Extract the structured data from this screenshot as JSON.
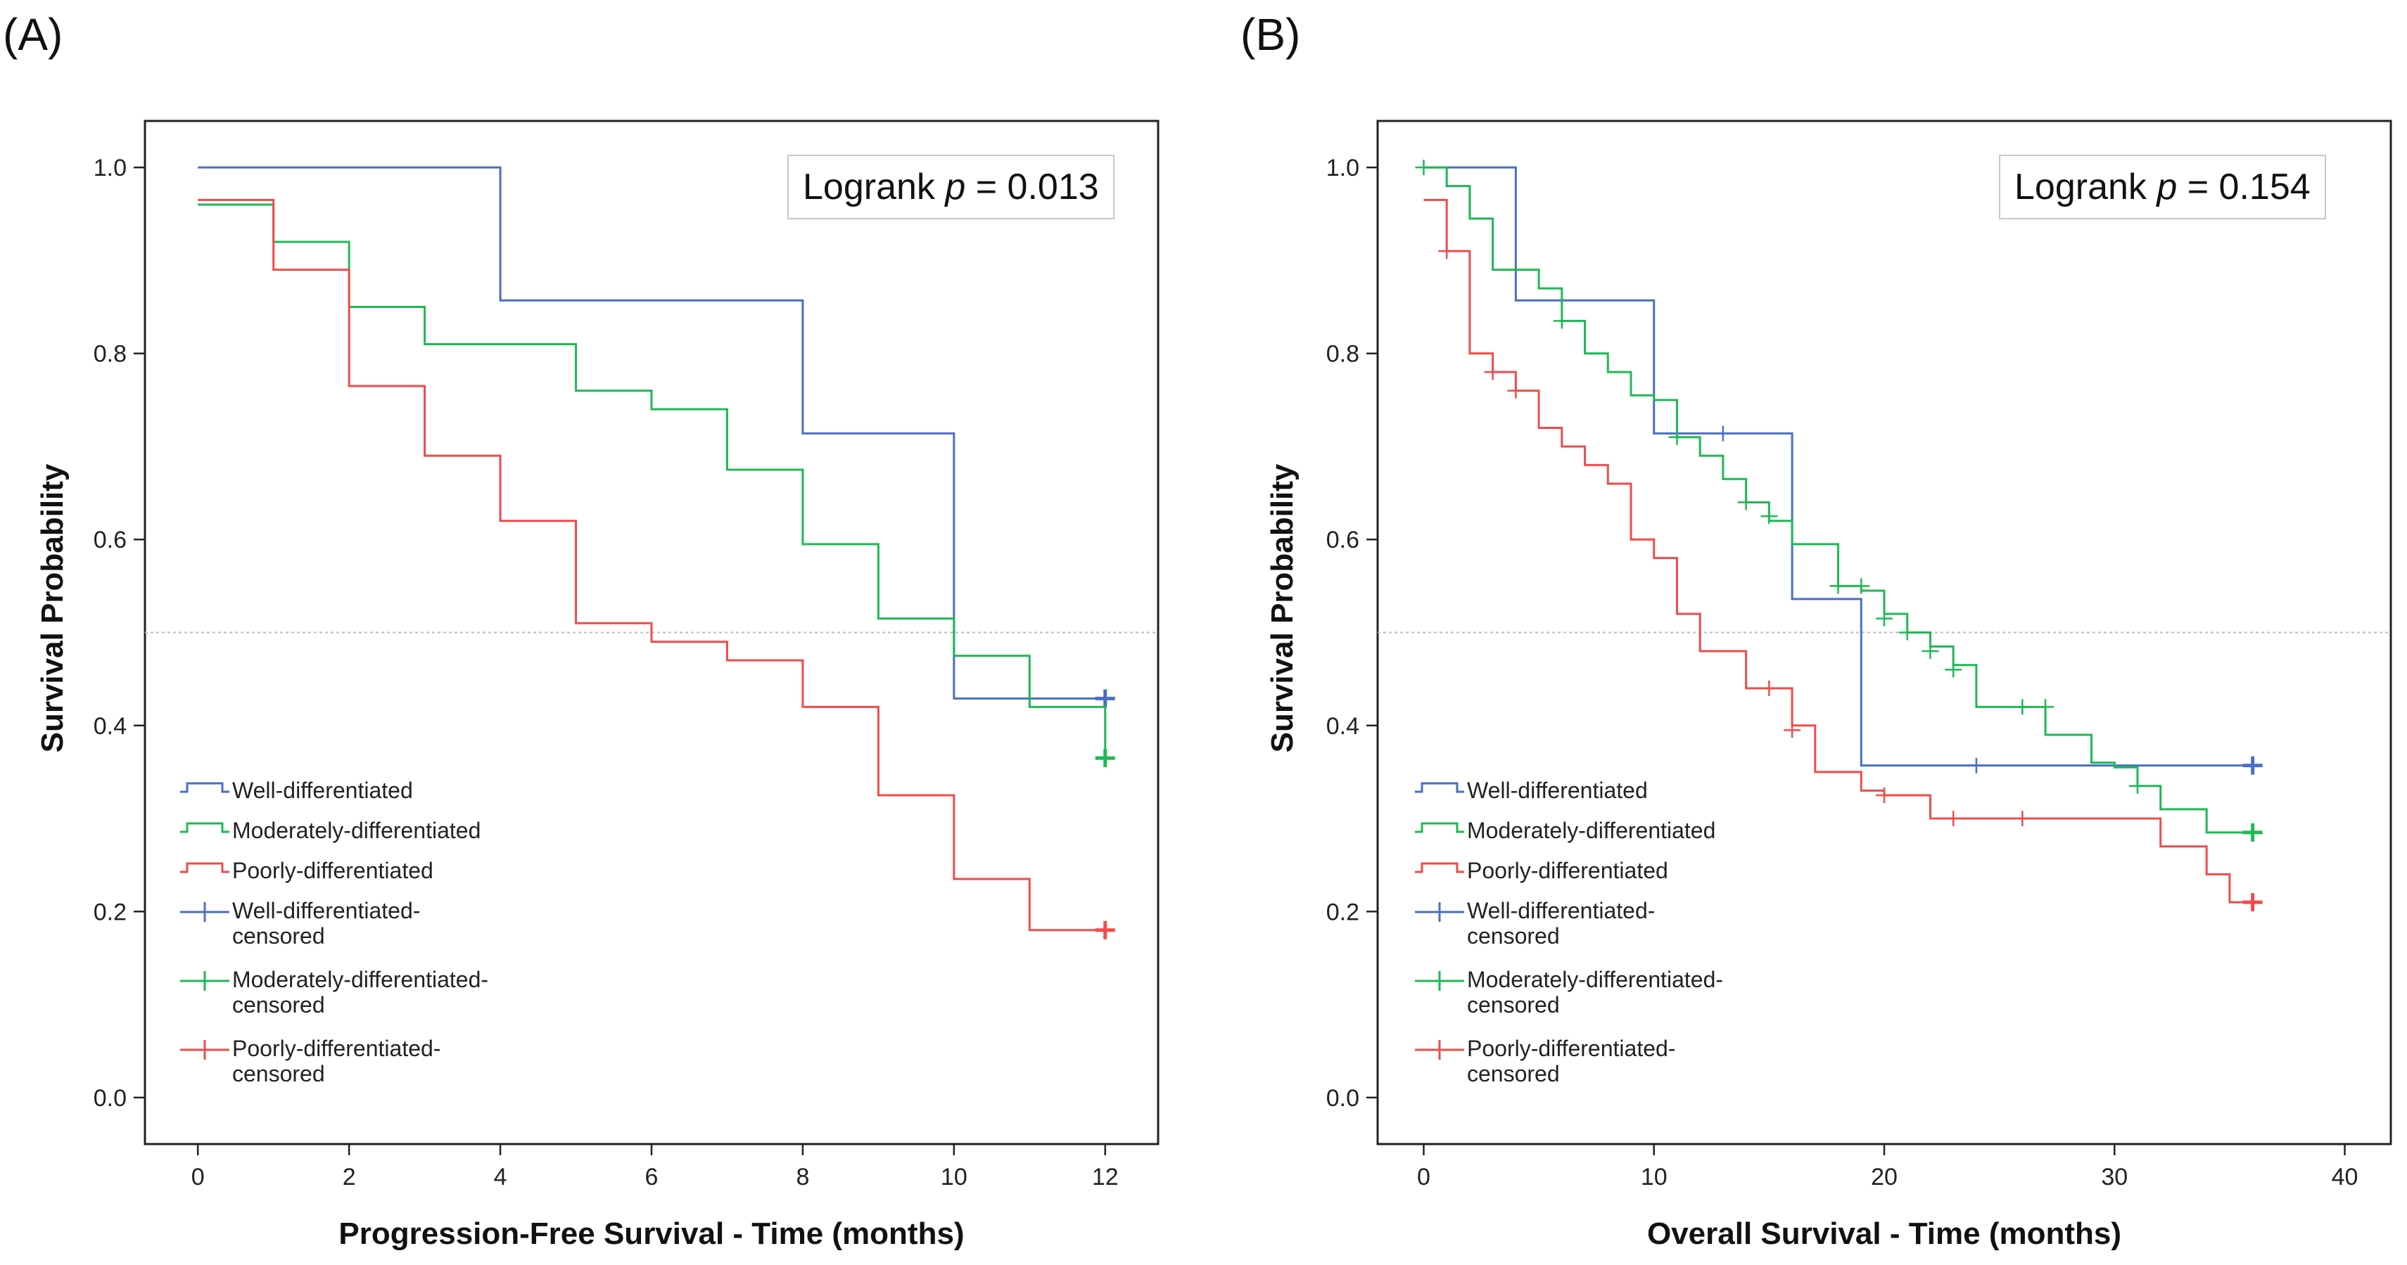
{
  "colors": {
    "well": "#4A6FC2",
    "moderate": "#1DB954",
    "poor": "#F04B4B",
    "ref": "#bbbbbb"
  },
  "panels": [
    {
      "label": "(A)",
      "logrank_prefix": "Logrank ",
      "logrank_p_symbol": "p",
      "logrank_suffix": " = 0.013",
      "chart_data": {
        "type": "line",
        "title": "",
        "xlabel": "Progression-Free Survival - Time (months)",
        "ylabel": "Survival Probability",
        "xlim": [
          -0.7,
          12.7
        ],
        "ylim": [
          -0.05,
          1.05
        ],
        "xticks": [
          0,
          2,
          4,
          6,
          8,
          10,
          12
        ],
        "yticks": [
          0.0,
          0.2,
          0.4,
          0.6,
          0.8,
          1.0
        ],
        "ytick_labels": [
          "0.0",
          "0.2",
          "0.4",
          "0.6",
          "0.8",
          "1.0"
        ],
        "reference_y": 0.5,
        "series": [
          {
            "key": "well",
            "name": "Well-differentiated",
            "step": true,
            "x": [
              0,
              4,
              8,
              10,
              12
            ],
            "y": [
              1.0,
              0.857,
              0.714,
              0.429,
              0.429
            ],
            "censored": [
              [
                12,
                0.429
              ]
            ]
          },
          {
            "key": "moderate",
            "name": "Moderately-differentiated",
            "step": true,
            "x": [
              0,
              1,
              2,
              3,
              5,
              6,
              7,
              8,
              9,
              10,
              11,
              12
            ],
            "y": [
              0.96,
              0.92,
              0.85,
              0.81,
              0.76,
              0.74,
              0.675,
              0.595,
              0.515,
              0.475,
              0.42,
              0.365
            ],
            "censored": [
              [
                12,
                0.365
              ]
            ]
          },
          {
            "key": "poor",
            "name": "Poorly-differentiated",
            "step": true,
            "x": [
              0,
              1,
              2,
              3,
              4,
              5,
              6,
              7,
              8,
              9,
              10,
              11,
              12
            ],
            "y": [
              0.965,
              0.89,
              0.765,
              0.69,
              0.62,
              0.51,
              0.49,
              0.47,
              0.42,
              0.325,
              0.235,
              0.18,
              0.18
            ],
            "censored": [
              [
                12,
                0.18
              ]
            ]
          }
        ],
        "legend": [
          {
            "key": "well",
            "kind": "line",
            "label": "Well-differentiated"
          },
          {
            "key": "moderate",
            "kind": "line",
            "label": "Moderately-differentiated"
          },
          {
            "key": "poor",
            "kind": "line",
            "label": "Poorly-differentiated"
          },
          {
            "key": "well",
            "kind": "censor",
            "label": "Well-differentiated-\ncensored"
          },
          {
            "key": "moderate",
            "kind": "censor",
            "label": "Moderately-differentiated-\ncensored"
          },
          {
            "key": "poor",
            "kind": "censor",
            "label": "Poorly-differentiated-\ncensored"
          }
        ],
        "legend_position": "bottom-left"
      }
    },
    {
      "label": "(B)",
      "logrank_prefix": "Logrank ",
      "logrank_p_symbol": "p",
      "logrank_suffix": " = 0.154",
      "chart_data": {
        "type": "line",
        "title": "",
        "xlabel": "Overall Survival - Time (months)",
        "ylabel": "Survival Probability",
        "xlim": [
          -2,
          42
        ],
        "ylim": [
          -0.05,
          1.05
        ],
        "xticks": [
          0,
          10,
          20,
          30,
          40
        ],
        "yticks": [
          0.0,
          0.2,
          0.4,
          0.6,
          0.8,
          1.0
        ],
        "ytick_labels": [
          "0.0",
          "0.2",
          "0.4",
          "0.6",
          "0.8",
          "1.0"
        ],
        "reference_y": 0.5,
        "series": [
          {
            "key": "well",
            "name": "Well-differentiated",
            "step": true,
            "x": [
              0,
              4,
              10,
              16,
              19,
              36
            ],
            "y": [
              1.0,
              0.857,
              0.714,
              0.536,
              0.357,
              0.357
            ],
            "censored": [
              [
                13,
                0.714
              ],
              [
                24,
                0.357
              ],
              [
                36,
                0.357
              ]
            ]
          },
          {
            "key": "moderate",
            "name": "Moderately-differentiated",
            "step": true,
            "x": [
              0,
              1,
              2,
              3,
              5,
              6,
              7,
              8,
              9,
              10,
              11,
              12,
              13,
              14,
              15,
              16,
              18,
              19,
              20,
              21,
              22,
              23,
              24,
              27,
              29,
              30,
              31,
              32,
              34,
              36
            ],
            "y": [
              1.0,
              0.98,
              0.945,
              0.89,
              0.87,
              0.835,
              0.8,
              0.78,
              0.755,
              0.75,
              0.71,
              0.69,
              0.665,
              0.64,
              0.62,
              0.595,
              0.55,
              0.545,
              0.52,
              0.5,
              0.485,
              0.465,
              0.42,
              0.39,
              0.36,
              0.355,
              0.335,
              0.31,
              0.285,
              0.285
            ],
            "censored": [
              [
                0,
                1.0
              ],
              [
                6,
                0.835
              ],
              [
                11,
                0.71
              ],
              [
                14,
                0.64
              ],
              [
                15,
                0.625
              ],
              [
                18,
                0.55
              ],
              [
                19,
                0.55
              ],
              [
                20,
                0.515
              ],
              [
                21,
                0.5
              ],
              [
                22,
                0.48
              ],
              [
                23,
                0.46
              ],
              [
                26,
                0.42
              ],
              [
                27,
                0.42
              ],
              [
                31,
                0.335
              ],
              [
                36,
                0.285
              ]
            ]
          },
          {
            "key": "poor",
            "name": "Poorly-differentiated",
            "step": true,
            "x": [
              0,
              1,
              2,
              3,
              4,
              5,
              6,
              7,
              8,
              9,
              10,
              11,
              12,
              14,
              16,
              17,
              19,
              20,
              22,
              26,
              32,
              34,
              35,
              36
            ],
            "y": [
              0.965,
              0.91,
              0.8,
              0.78,
              0.76,
              0.72,
              0.7,
              0.68,
              0.66,
              0.6,
              0.58,
              0.52,
              0.48,
              0.44,
              0.4,
              0.35,
              0.33,
              0.325,
              0.3,
              0.3,
              0.27,
              0.24,
              0.21,
              0.21
            ],
            "censored": [
              [
                1,
                0.91
              ],
              [
                3,
                0.78
              ],
              [
                4,
                0.76
              ],
              [
                15,
                0.44
              ],
              [
                16,
                0.395
              ],
              [
                20,
                0.325
              ],
              [
                23,
                0.3
              ],
              [
                26,
                0.3
              ],
              [
                36,
                0.21
              ]
            ]
          }
        ],
        "legend": [
          {
            "key": "well",
            "kind": "line",
            "label": "Well-differentiated"
          },
          {
            "key": "moderate",
            "kind": "line",
            "label": "Moderately-differentiated"
          },
          {
            "key": "poor",
            "kind": "line",
            "label": "Poorly-differentiated"
          },
          {
            "key": "well",
            "kind": "censor",
            "label": "Well-differentiated-\ncensored"
          },
          {
            "key": "moderate",
            "kind": "censor",
            "label": "Moderately-differentiated-\ncensored"
          },
          {
            "key": "poor",
            "kind": "censor",
            "label": "Poorly-differentiated-\ncensored"
          }
        ],
        "legend_position": "bottom-left"
      }
    }
  ]
}
